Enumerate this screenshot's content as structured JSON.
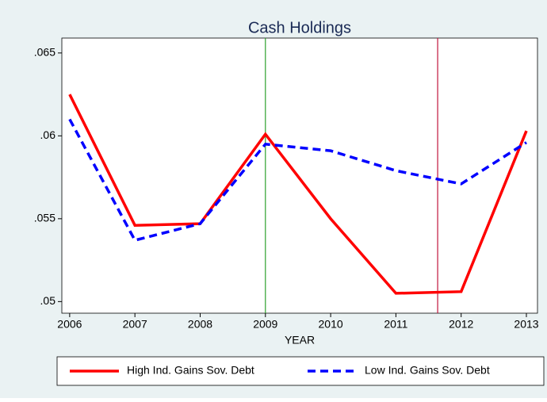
{
  "chart_data": {
    "type": "line",
    "title": "Cash Holdings",
    "xlabel": "YEAR",
    "x": [
      2006,
      2007,
      2008,
      2009,
      2010,
      2011,
      2012,
      2013
    ],
    "series": [
      {
        "name": "High Ind. Gains Sov. Debt",
        "color": "#ff0000",
        "dash": "solid",
        "values": [
          0.0625,
          0.0546,
          0.0547,
          0.0601,
          0.055,
          0.0505,
          0.0506,
          0.0603
        ]
      },
      {
        "name": "Low Ind. Gains Sov. Debt",
        "color": "#0000ff",
        "dash": "dashed",
        "values": [
          0.061,
          0.0537,
          0.0547,
          0.0595,
          0.0591,
          0.0579,
          0.0571,
          0.0596
        ]
      }
    ],
    "reference_lines": [
      {
        "x": 2009,
        "color": "#2ca02c"
      },
      {
        "x": 2011.64,
        "color": "#c0143c"
      }
    ],
    "xlim": [
      2005.88,
      2013.17
    ],
    "xticks": [
      2006,
      2007,
      2008,
      2009,
      2010,
      2011,
      2012,
      2013
    ],
    "ylim": [
      0.0493,
      0.0659
    ],
    "yticks": [
      {
        "value": 0.05,
        "label": ".05"
      },
      {
        "value": 0.055,
        "label": ".055"
      },
      {
        "value": 0.06,
        "label": ".06"
      },
      {
        "value": 0.065,
        "label": ".065"
      }
    ],
    "grid": false,
    "legend": "bottom"
  }
}
